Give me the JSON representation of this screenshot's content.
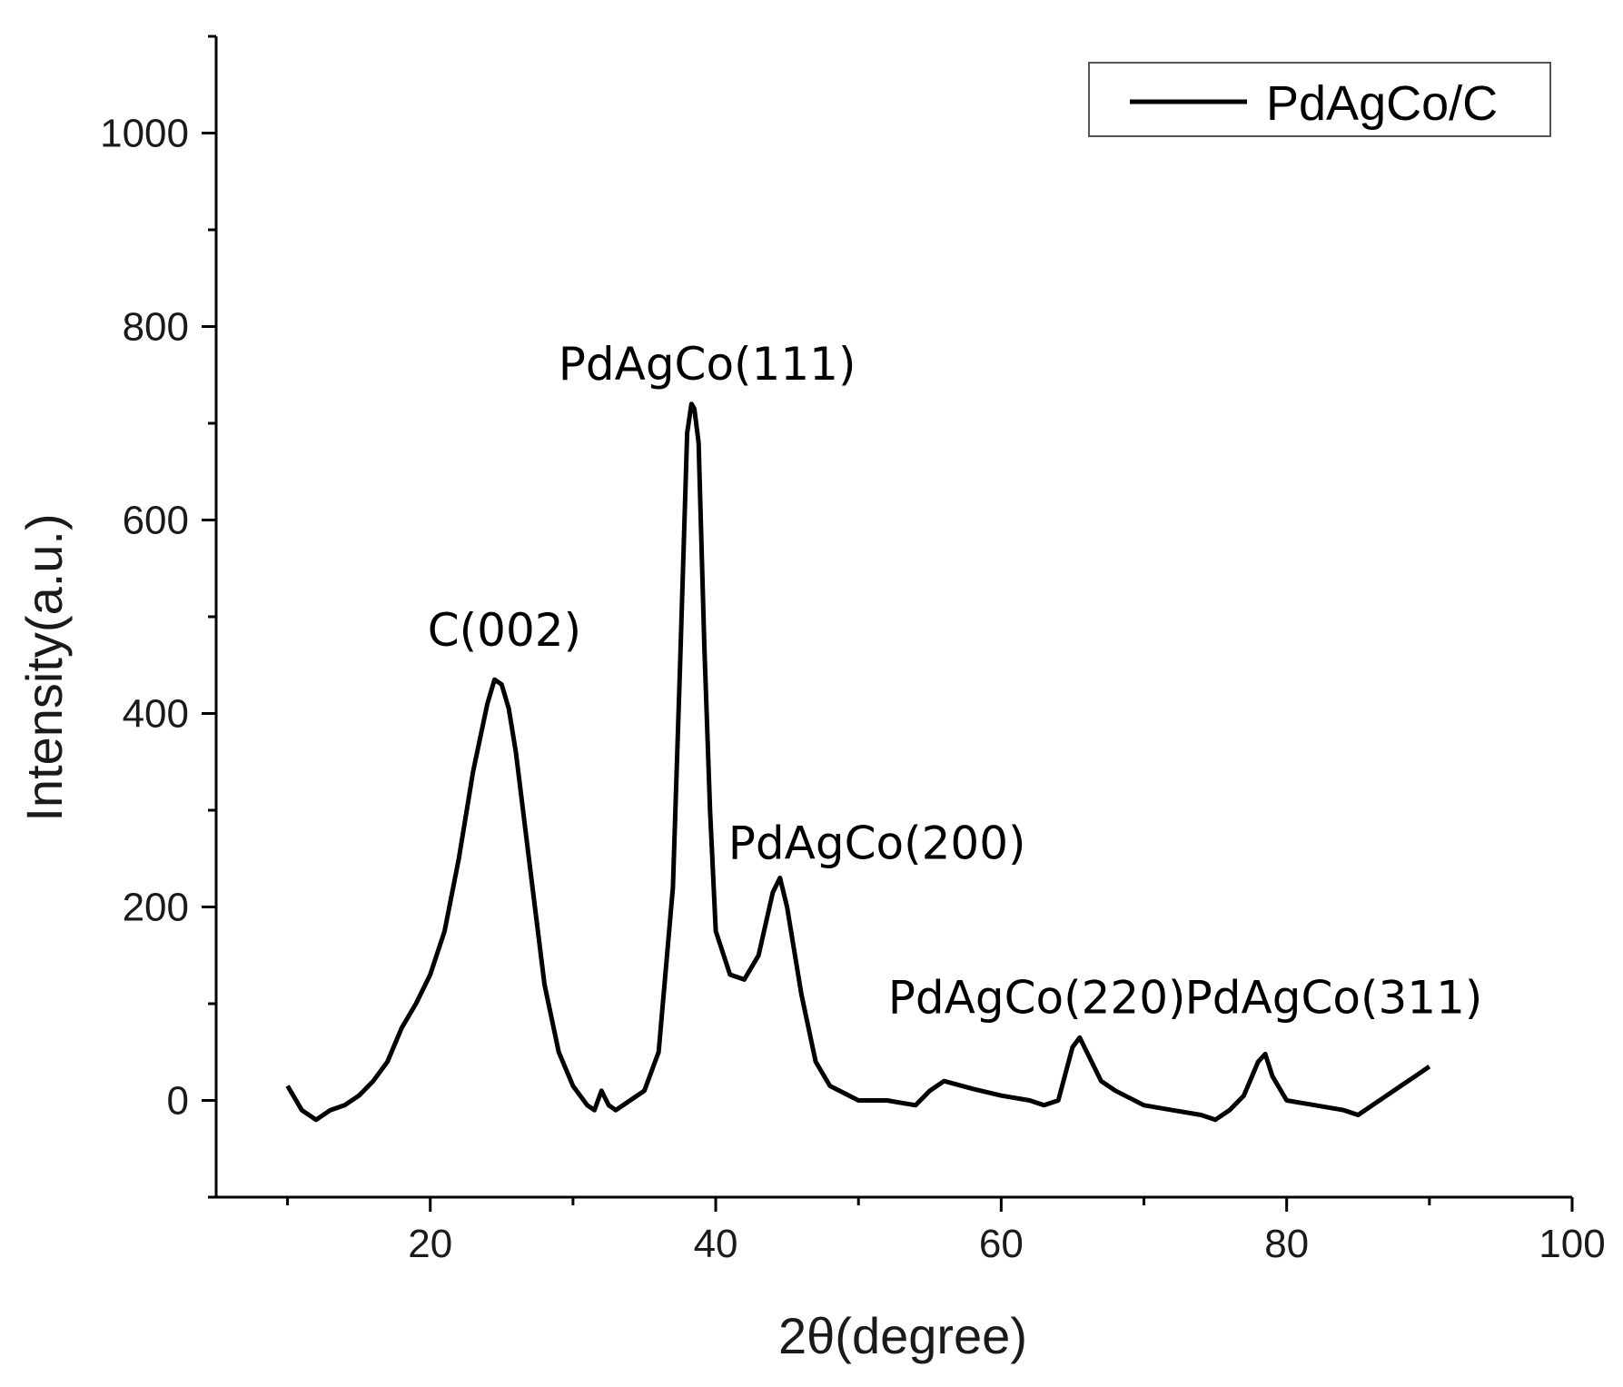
{
  "chart_data": {
    "type": "line",
    "xlabel": "2θ(degree)",
    "ylabel": "Intensity(a.u.)",
    "xlim": [
      5,
      100
    ],
    "ylim": [
      -100,
      1100
    ],
    "xticks": [
      20,
      40,
      60,
      80,
      100
    ],
    "yticks": [
      0,
      200,
      400,
      600,
      800,
      1000
    ],
    "grid": false,
    "legend": {
      "position": "top-right",
      "entries": [
        "PdAgCo/C"
      ]
    },
    "series": [
      {
        "name": "PdAgCo/C",
        "color": "#000000",
        "x": [
          10,
          11,
          12,
          13,
          14,
          15,
          16,
          17,
          18,
          19,
          20,
          21,
          22,
          23,
          24,
          24.5,
          25,
          25.5,
          26,
          27,
          28,
          29,
          30,
          31,
          31.5,
          32,
          32.5,
          33,
          34,
          35,
          36,
          37,
          37.5,
          38,
          38.3,
          38.5,
          38.8,
          39.2,
          39.6,
          40,
          41,
          42,
          43,
          44,
          44.5,
          45,
          46,
          47,
          48,
          50,
          52,
          54,
          55,
          56,
          58,
          60,
          62,
          63,
          64,
          65,
          65.5,
          66,
          67,
          68,
          70,
          72,
          74,
          75,
          76,
          77,
          78,
          78.5,
          79,
          80,
          82,
          84,
          85,
          86,
          87,
          88,
          89,
          90
        ],
        "y": [
          15,
          -10,
          -20,
          -10,
          -5,
          5,
          20,
          40,
          75,
          100,
          130,
          175,
          250,
          340,
          410,
          435,
          430,
          405,
          360,
          240,
          120,
          50,
          15,
          -5,
          -10,
          10,
          -5,
          -10,
          0,
          10,
          50,
          220,
          450,
          690,
          720,
          715,
          680,
          470,
          300,
          175,
          130,
          125,
          150,
          215,
          230,
          200,
          110,
          40,
          15,
          0,
          0,
          -5,
          10,
          20,
          12,
          5,
          0,
          -5,
          0,
          55,
          65,
          50,
          20,
          10,
          -5,
          -10,
          -15,
          -20,
          -10,
          5,
          40,
          48,
          25,
          0,
          -5,
          -10,
          -15,
          -5,
          5,
          15,
          25,
          35
        ]
      }
    ],
    "annotations": [
      {
        "text": "C(002)",
        "x": 25.2,
        "y": 470
      },
      {
        "text": "PdAgCo(111)",
        "x": 39.4,
        "y": 745
      },
      {
        "text": "PdAgCo(200)",
        "x": 51.3,
        "y": 250
      },
      {
        "text": "PdAgCo(220)",
        "x": 62.5,
        "y": 90
      },
      {
        "text": "PdAgCo(311)",
        "x": 83.3,
        "y": 90
      }
    ]
  }
}
